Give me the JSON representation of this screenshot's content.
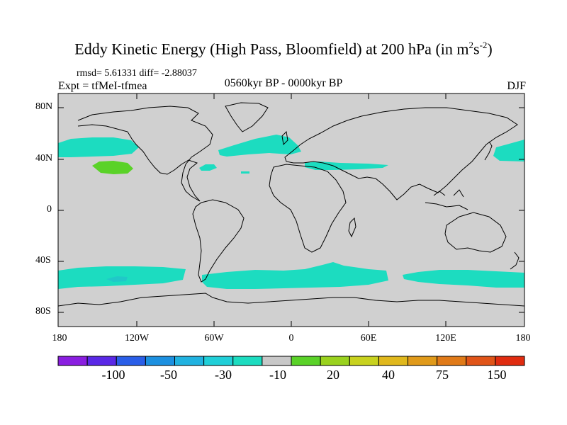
{
  "title": "Eddy Kinetic Energy (High Pass, Bloomfield) at 200 hPa (in m",
  "title_unit_exp1": "2",
  "title_unit_mid": "s",
  "title_unit_exp2": "-2",
  "title_close": ")",
  "stats": "rmsd= 5.61331 diff= -2.88037",
  "experiment": "Expt = tfMeI-tfmea",
  "period": "0560kyr BP - 0000kyr BP",
  "season": "DJF",
  "lat_labels": [
    "80N",
    "40N",
    "0",
    "40S",
    "80S"
  ],
  "lon_labels": [
    "180",
    "120W",
    "60W",
    "0",
    "60E",
    "120E",
    "180"
  ],
  "colorbar": {
    "labels": [
      "-100",
      "-50",
      "-30",
      "-10",
      "20",
      "40",
      "75",
      "150"
    ],
    "colors": [
      "#8a1ee0",
      "#5a28e6",
      "#2a5ee8",
      "#1c90e0",
      "#20b2e0",
      "#20cfd8",
      "#1cdcc0",
      "#c8c8c8",
      "#5ad228",
      "#9ad21e",
      "#c8d21e",
      "#e0b81c",
      "#e09a1a",
      "#e07a18",
      "#e05418",
      "#e02c10"
    ]
  },
  "map": {
    "background_color": "#d0d0d0",
    "anomaly_regions": [
      {
        "name": "north-pacific-band",
        "value_class": "-10",
        "color": "#1cdcc0"
      },
      {
        "name": "north-atlantic-band",
        "value_class": "-10",
        "color": "#1cdcc0"
      },
      {
        "name": "mediterranean-band",
        "value_class": "-10",
        "color": "#1cdcc0"
      },
      {
        "name": "north-pacific-positive",
        "value_class": "20",
        "color": "#5ad228"
      },
      {
        "name": "southern-ocean-band",
        "value_class": "-10",
        "color": "#1cdcc0"
      }
    ]
  }
}
